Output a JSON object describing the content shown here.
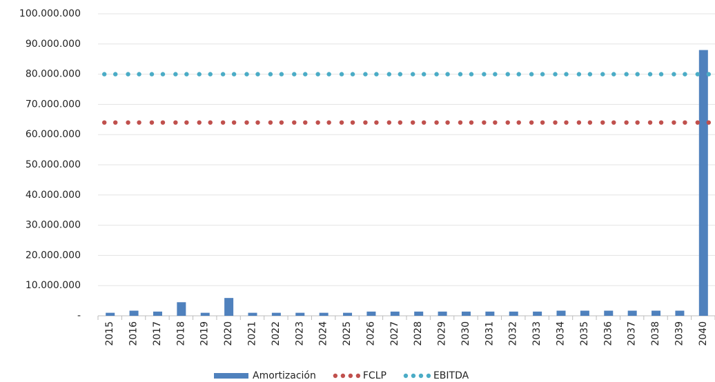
{
  "chart_data": {
    "type": "bar",
    "categories": [
      "2015",
      "2016",
      "2017",
      "2018",
      "2019",
      "2020",
      "2021",
      "2022",
      "2023",
      "2024",
      "2025",
      "2026",
      "2027",
      "2028",
      "2029",
      "2030",
      "2031",
      "2032",
      "2033",
      "2034",
      "2035",
      "2036",
      "2037",
      "2038",
      "2039",
      "2040"
    ],
    "series": [
      {
        "name": "Amortización",
        "type": "bar",
        "color": "#4f81bd",
        "values": [
          1000000,
          1700000,
          1400000,
          4500000,
          1000000,
          5900000,
          1000000,
          1000000,
          1000000,
          1000000,
          1000000,
          1400000,
          1400000,
          1400000,
          1400000,
          1400000,
          1400000,
          1400000,
          1400000,
          1700000,
          1700000,
          1700000,
          1700000,
          1700000,
          1700000,
          88000000
        ]
      },
      {
        "name": "FCLP",
        "type": "dots",
        "color": "#c0504d",
        "values": [
          64000000,
          64000000,
          64000000,
          64000000,
          64000000,
          64000000,
          64000000,
          64000000,
          64000000,
          64000000,
          64000000,
          64000000,
          64000000,
          64000000,
          64000000,
          64000000,
          64000000,
          64000000,
          64000000,
          64000000,
          64000000,
          64000000,
          64000000,
          64000000,
          64000000,
          64000000
        ]
      },
      {
        "name": "EBITDA",
        "type": "dots",
        "color": "#4bacc6",
        "values": [
          80000000,
          80000000,
          80000000,
          80000000,
          80000000,
          80000000,
          80000000,
          80000000,
          80000000,
          80000000,
          80000000,
          80000000,
          80000000,
          80000000,
          80000000,
          80000000,
          80000000,
          80000000,
          80000000,
          80000000,
          80000000,
          80000000,
          80000000,
          80000000,
          80000000,
          80000000
        ]
      }
    ],
    "ylim": [
      0,
      100000000
    ],
    "yticks": [
      {
        "value": 0,
        "label": "-"
      },
      {
        "value": 10000000,
        "label": "10.000.000"
      },
      {
        "value": 20000000,
        "label": "20.000.000"
      },
      {
        "value": 30000000,
        "label": "30.000.000"
      },
      {
        "value": 40000000,
        "label": "40.000.000"
      },
      {
        "value": 50000000,
        "label": "50.000.000"
      },
      {
        "value": 60000000,
        "label": "60.000.000"
      },
      {
        "value": 70000000,
        "label": "70.000.000"
      },
      {
        "value": 80000000,
        "label": "80.000.000"
      },
      {
        "value": 90000000,
        "label": "90.000.000"
      },
      {
        "value": 100000000,
        "label": "100.000.000"
      }
    ],
    "grid": true,
    "legend": "bottom"
  }
}
